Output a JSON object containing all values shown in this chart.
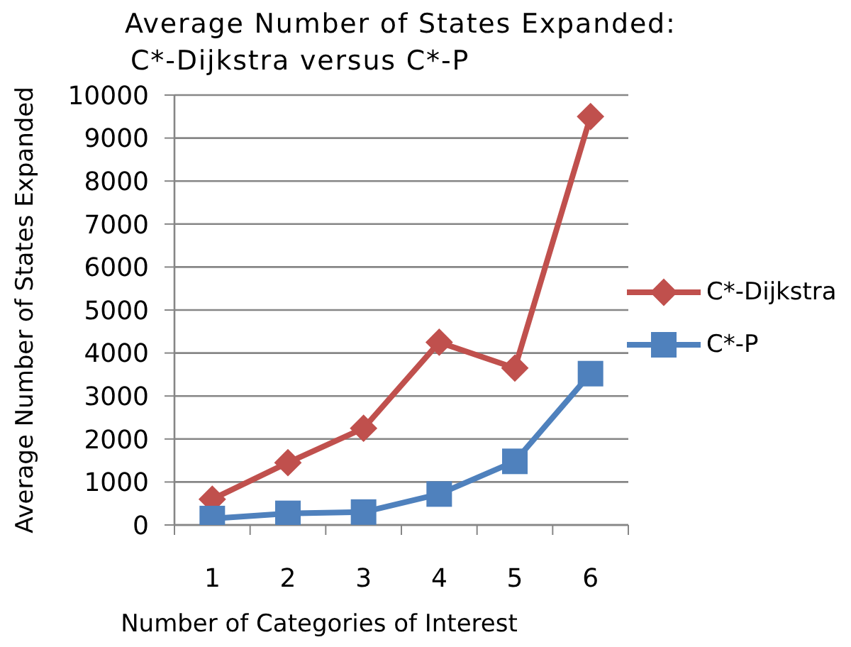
{
  "chart_data": {
    "type": "line",
    "title": "Average Number of States Expanded:\nC*-Dijkstra versus C*-P",
    "xlabel": "Number of Categories of Interest",
    "ylabel": "Average Number of States Expanded",
    "categories": [
      "1",
      "2",
      "3",
      "4",
      "5",
      "6"
    ],
    "ylim": [
      0,
      10000
    ],
    "yticks": [
      0,
      1000,
      2000,
      3000,
      4000,
      5000,
      6000,
      7000,
      8000,
      9000,
      10000
    ],
    "grid": "y",
    "legend": "right",
    "line_style": "solid",
    "series": [
      {
        "name": "C*-Dijkstra",
        "color": "#c0504d",
        "marker": "diamond",
        "values": [
          600,
          1450,
          2250,
          4250,
          3650,
          9500
        ]
      },
      {
        "name": "C*-P",
        "color": "#4f81bd",
        "marker": "square",
        "values": [
          150,
          270,
          300,
          720,
          1480,
          3520
        ]
      }
    ]
  }
}
